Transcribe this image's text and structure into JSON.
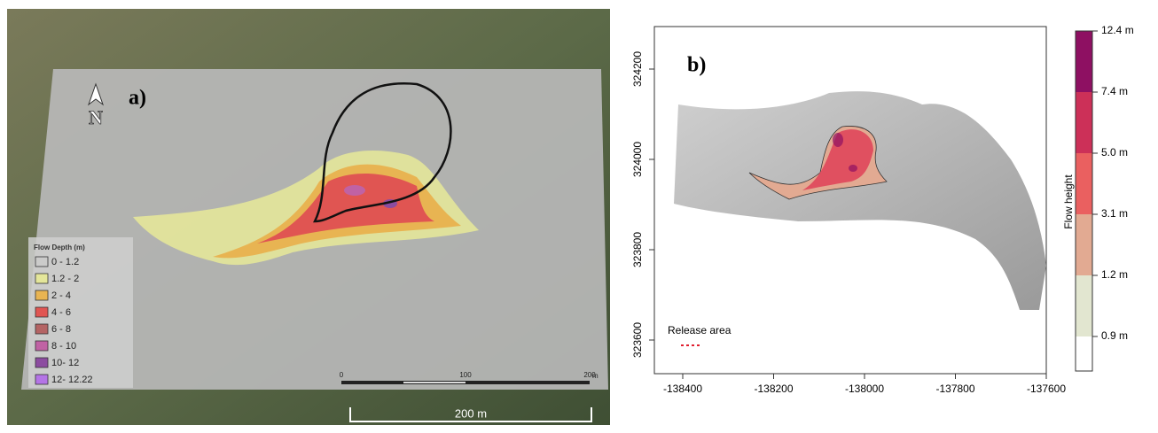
{
  "panel_a": {
    "label": "a)",
    "north": "N",
    "legend": {
      "title": "Flow Depth (m)",
      "items": [
        {
          "label": "0 - 1.2",
          "color": "none"
        },
        {
          "label": "1.2 - 2",
          "color": "#e4e69a"
        },
        {
          "label": "2 - 4",
          "color": "#e8b452"
        },
        {
          "label": "4 - 6",
          "color": "#e05552"
        },
        {
          "label": "6 - 8",
          "color": "#b46464"
        },
        {
          "label": "8 - 10",
          "color": "#c062a4"
        },
        {
          "label": "10- 12",
          "color": "#8c4ca0"
        },
        {
          "label": "12- 12.22",
          "color": "#b474e6"
        }
      ]
    },
    "scale_bar": {
      "ticks": [
        0,
        100,
        200
      ],
      "unit": "m"
    },
    "overview_scale": "200 m"
  },
  "panel_b": {
    "label": "b)",
    "xticks": [
      -138400,
      -138200,
      -138000,
      -137800,
      -137600
    ],
    "yticks": [
      324200,
      324000,
      323800,
      323600
    ],
    "colorbar": {
      "title": "Flow height",
      "labels": [
        "12.4 m",
        "7.4 m",
        "5.0 m",
        "3.1 m",
        "1.2 m",
        "0.9 m"
      ],
      "colors": [
        "#8e1062",
        "#cc3058",
        "#ea6060",
        "#e2aa92",
        "#e2e6d0",
        "#ffffff"
      ]
    },
    "legend": "Release area"
  }
}
